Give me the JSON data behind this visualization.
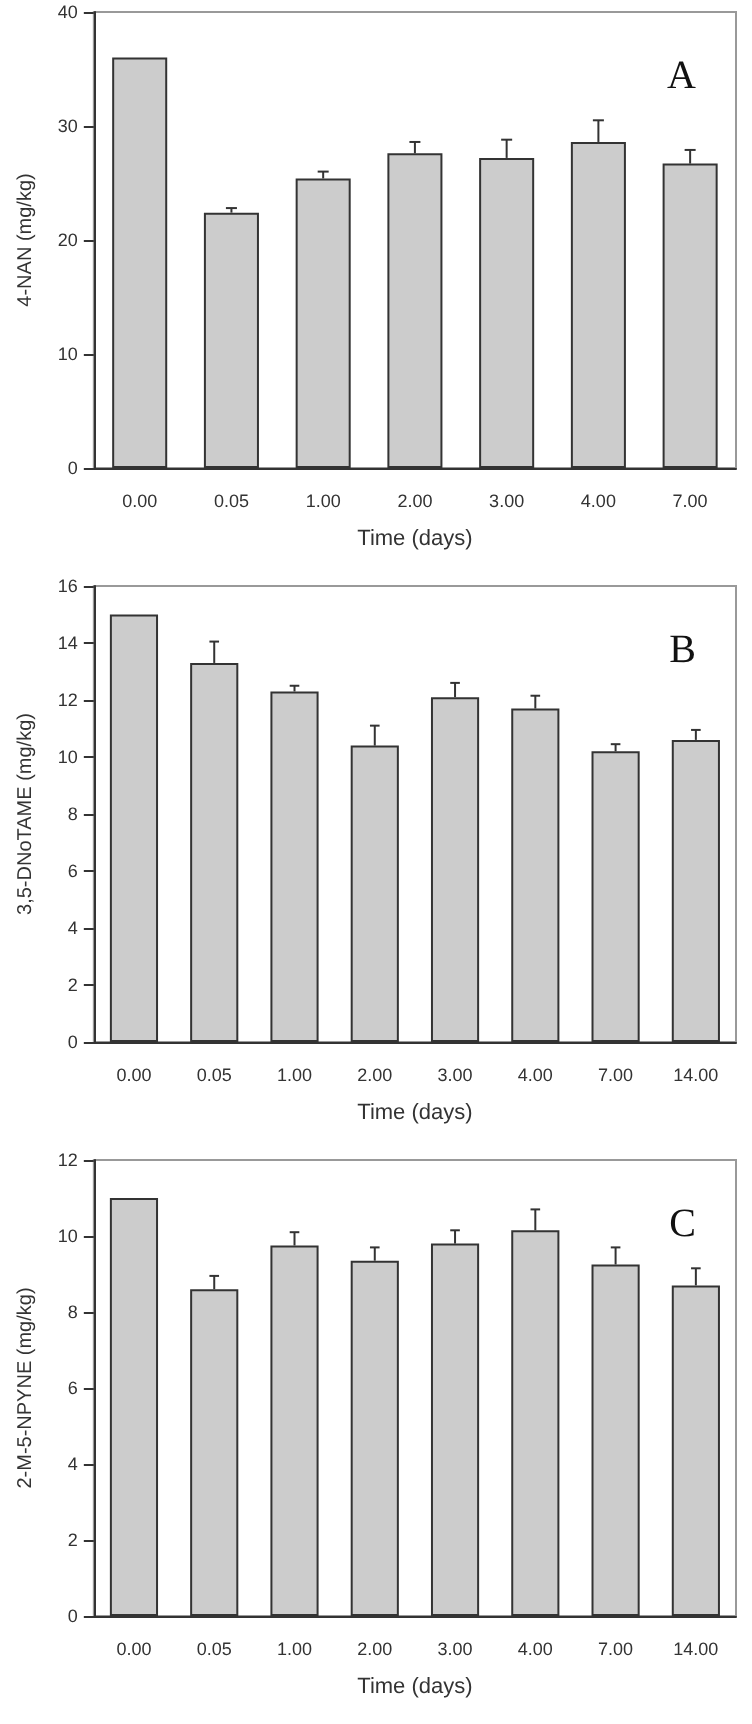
{
  "chart_data": [
    {
      "type": "bar",
      "xlabel": "Time (days)",
      "ylabel": "4-NAN (mg/kg)",
      "annotations": [
        "A"
      ],
      "categories": [
        "0.00",
        "0.05",
        "1.00",
        "2.00",
        "3.00",
        "4.00",
        "7.00"
      ],
      "series": [
        {
          "color": "#cccccc",
          "values": [
            36,
            22.4,
            25.4,
            27.6,
            27.2,
            28.6,
            26.7
          ],
          "errors": [
            null,
            [
              22.4,
              22.8
            ],
            [
              25.4,
              26.0
            ],
            [
              27.6,
              28.6
            ],
            [
              27.2,
              28.8
            ],
            [
              28.6,
              30.5
            ],
            [
              26.7,
              27.9
            ]
          ]
        }
      ],
      "ylim": [
        0,
        40
      ],
      "yticks": [
        0,
        10,
        20,
        30,
        40
      ],
      "grid": false
    },
    {
      "type": "bar",
      "xlabel": "Time (days)",
      "ylabel": "3,5-DNoTAME (mg/kg)",
      "annotations": [
        "B"
      ],
      "categories": [
        "0.00",
        "0.05",
        "1.00",
        "2.00",
        "3.00",
        "4.00",
        "7.00",
        "14.00"
      ],
      "series": [
        {
          "color": "#cccccc",
          "values": [
            15.0,
            13.3,
            12.3,
            10.4,
            12.1,
            11.7,
            10.2,
            10.6
          ],
          "errors": [
            null,
            [
              13.3,
              14.05
            ],
            [
              12.3,
              12.5
            ],
            [
              10.4,
              11.1
            ],
            [
              12.1,
              12.6
            ],
            [
              11.7,
              12.15
            ],
            [
              10.2,
              10.45
            ],
            [
              10.6,
              10.95
            ]
          ]
        }
      ],
      "ylim": [
        0,
        16
      ],
      "yticks": [
        0,
        2,
        4,
        6,
        8,
        10,
        12,
        14,
        16
      ],
      "grid": false
    },
    {
      "type": "bar",
      "xlabel": "Time (days)",
      "ylabel": "2-M-5-NPYNE (mg/kg)",
      "annotations": [
        "C"
      ],
      "categories": [
        "0.00",
        "0.05",
        "1.00",
        "2.00",
        "3.00",
        "4.00",
        "7.00",
        "14.00"
      ],
      "series": [
        {
          "color": "#cccccc",
          "values": [
            11.0,
            8.6,
            9.75,
            9.35,
            9.8,
            10.15,
            9.25,
            8.7
          ],
          "errors": [
            null,
            [
              8.6,
              8.95
            ],
            [
              9.75,
              10.1
            ],
            [
              9.35,
              9.7
            ],
            [
              9.8,
              10.15
            ],
            [
              10.15,
              10.7
            ],
            [
              9.25,
              9.7
            ],
            [
              8.7,
              9.15
            ]
          ]
        }
      ],
      "ylim": [
        0,
        12
      ],
      "yticks": [
        0,
        2,
        4,
        6,
        8,
        10,
        12
      ],
      "grid": false
    }
  ]
}
